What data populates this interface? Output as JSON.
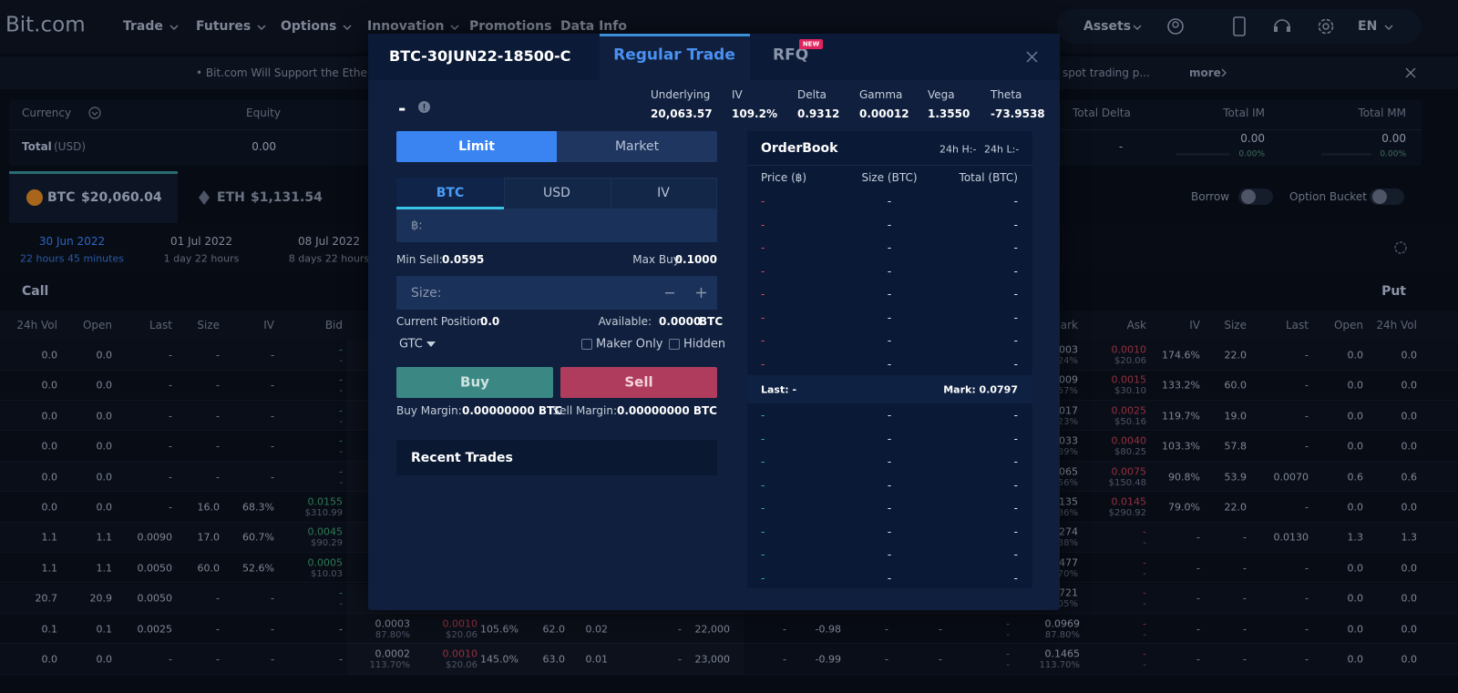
{
  "nav": {
    "logo": "Bit.com",
    "items": [
      "Trade",
      "Futures",
      "Options",
      "Innovation",
      "Promotions",
      "Data Info"
    ],
    "assets": "Assets",
    "language": "EN"
  },
  "banner": {
    "text": "• Bit.com Will Support the Ethereum",
    "text_right": "spot trading p...",
    "more": "more"
  },
  "account": {
    "headers": {
      "currency": "Currency",
      "equity": "Equity",
      "total_delta": "Total Delta",
      "total_im": "Total IM",
      "total_mm": "Total MM"
    },
    "total_label": "Total",
    "total_unit": "(USD)",
    "equity": "0.00",
    "total_delta": "-",
    "total_im": "0.00",
    "total_im_pct": "0.00%",
    "total_mm": "0.00",
    "total_mm_pct": "0.00%"
  },
  "currencies": [
    {
      "symbol": "BTC",
      "price": "$20,060.04"
    },
    {
      "symbol": "ETH",
      "price": "$1,131.54"
    }
  ],
  "toggles": [
    "Borrow",
    "Option Bucket"
  ],
  "expiries": [
    {
      "date": "30 Jun 2022",
      "remaining": "22 hours 45 minutes"
    },
    {
      "date": "01 Jul 2022",
      "remaining": "1 day 22 hours"
    },
    {
      "date": "08 Jul 2022",
      "remaining": "8 days 22 hours"
    }
  ],
  "call": "Call",
  "put": "Put",
  "table": {
    "left_headers": [
      "24h Vol",
      "Open",
      "Last",
      "Size",
      "IV",
      "Bid"
    ],
    "right_headers": [
      "Mark",
      "Ask",
      "IV",
      "Size",
      "Last",
      "Open",
      "24h Vol"
    ],
    "rows": [
      {
        "left": [
          "0.0",
          "0.0",
          "-",
          "-",
          "-",
          [
            "-",
            "-"
          ]
        ],
        "right": [
          [
            "003",
            "24%"
          ],
          [
            "0.0010",
            "$20.06"
          ],
          "174.6%",
          "22.0",
          "-",
          "0.0",
          "0.0"
        ]
      },
      {
        "left": [
          "0.0",
          "0.0",
          "-",
          "-",
          "-",
          [
            "-",
            "-"
          ]
        ],
        "right": [
          [
            "009",
            "57%"
          ],
          [
            "0.0015",
            "$30.10"
          ],
          "133.2%",
          "60.0",
          "-",
          "0.0",
          "0.0"
        ]
      },
      {
        "left": [
          "0.0",
          "0.0",
          "-",
          "-",
          "-",
          [
            "-",
            "-"
          ]
        ],
        "right": [
          [
            "017",
            "23%"
          ],
          [
            "0.0025",
            "$50.16"
          ],
          "119.7%",
          "19.0",
          "-",
          "0.0",
          "0.0"
        ]
      },
      {
        "left": [
          "0.0",
          "0.0",
          "-",
          "-",
          "-",
          [
            "-",
            "-"
          ]
        ],
        "right": [
          [
            "033",
            "89%"
          ],
          [
            "0.0040",
            "$80.25"
          ],
          "103.3%",
          "57.8",
          "-",
          "0.0",
          "0.0"
        ]
      },
      {
        "left": [
          "0.0",
          "0.0",
          "-",
          "-",
          "-",
          [
            "-",
            "-"
          ]
        ],
        "right": [
          [
            "065",
            "56%"
          ],
          [
            "0.0075",
            "$150.48"
          ],
          "90.8%",
          "53.9",
          "0.0070",
          "0.6",
          "0.6"
        ]
      },
      {
        "left": [
          "0.0",
          "0.0",
          "-",
          "16.0",
          "68.3%",
          [
            "0.0155",
            "$310.99"
          ]
        ],
        "right": [
          [
            "135",
            "36%"
          ],
          [
            "0.0145",
            "$290.92"
          ],
          "79.0%",
          "22.0",
          "-",
          "0.0",
          "0.0"
        ]
      },
      {
        "left": [
          "1.1",
          "1.1",
          "0.0090",
          "17.0",
          "60.7%",
          [
            "0.0045",
            "$90.29"
          ]
        ],
        "right": [
          [
            "274",
            "38%"
          ],
          [
            "-",
            "-"
          ],
          "-",
          "-",
          "0.0130",
          "1.3",
          "1.3"
        ]
      },
      {
        "left": [
          "1.1",
          "1.1",
          "0.0050",
          "60.0",
          "52.6%",
          [
            "0.0005",
            "$10.03"
          ]
        ],
        "right": [
          [
            "477",
            "70%"
          ],
          [
            "-",
            "-"
          ],
          "-",
          "-",
          "-",
          "0.0",
          "0.0"
        ]
      },
      {
        "left": [
          "20.7",
          "20.9",
          "0.0050",
          "-",
          "-",
          [
            "-",
            "-"
          ]
        ],
        "right": [
          [
            "721",
            "05%"
          ],
          [
            "-",
            "-"
          ],
          "-",
          "-",
          "-",
          "0.0",
          "0.0"
        ]
      }
    ],
    "full_rows": [
      [
        "0.1",
        "0.1",
        "0.0025",
        "-",
        "-",
        "-",
        [
          "0.0003",
          "87.80%"
        ],
        [
          "0.0010",
          "$20.06"
        ],
        "105.6%",
        "62.0",
        "0.02",
        "-",
        "22,000",
        "-",
        "-0.98",
        "-",
        "-",
        [
          "-",
          "-"
        ],
        [
          "0.0969",
          "87.80%"
        ],
        [
          "-",
          "-"
        ],
        "-",
        "-",
        "-",
        "0.0",
        "0.0"
      ],
      [
        "0.0",
        "0.0",
        "-",
        "-",
        "-",
        "-",
        [
          "0.0002",
          "113.70%"
        ],
        [
          "0.0010",
          "$20.06"
        ],
        "145.0%",
        "63.0",
        "0.01",
        "-",
        "23,000",
        "-",
        "-0.99",
        "-",
        "-",
        [
          "-",
          "-"
        ],
        [
          "0.1465",
          "113.70%"
        ],
        [
          "-",
          "-"
        ],
        "-",
        "-",
        "-",
        "0.0",
        "0.0"
      ]
    ]
  },
  "modal": {
    "instrument": "BTC-30JUN22-18500-C",
    "tabs": [
      "Regular Trade",
      "RFQ"
    ],
    "badge": "NEW",
    "price": "-",
    "stats": [
      {
        "label": "Underlying",
        "value": "20,063.57"
      },
      {
        "label": "IV",
        "value": "109.2%"
      },
      {
        "label": "Delta",
        "value": "0.9312"
      },
      {
        "label": "Gamma",
        "value": "0.00012"
      },
      {
        "label": "Vega",
        "value": "1.3550"
      },
      {
        "label": "Theta",
        "value": "-73.9538"
      }
    ],
    "order_types": [
      "Limit",
      "Market"
    ],
    "units": [
      "BTC",
      "USD",
      "IV"
    ],
    "price_label": "฿:",
    "min_sell_label": "Min Sell:",
    "min_sell": "0.0595",
    "max_buy_label": "Max Buy:",
    "max_buy": "0.1000",
    "size_label": "Size:",
    "position_label": "Current Position:",
    "position": "0.0",
    "available_label": "Available:",
    "available": "0.0000",
    "available_unit": "BTC",
    "time_in_force": "GTC",
    "options": [
      "Maker Only",
      "Hidden"
    ],
    "buy": "Buy",
    "sell": "Sell",
    "buy_margin_label": "Buy Margin:",
    "buy_margin": "0.00000000 BTC",
    "sell_margin_label": "Sell Margin:",
    "sell_margin": "0.00000000 BTC",
    "recent_trades": "Recent Trades"
  },
  "orderbook": {
    "title": "OrderBook",
    "high": "24h H:-",
    "low": "24h L:-",
    "headers": [
      "Price (฿)",
      "Size (BTC)",
      "Total (BTC)"
    ],
    "asks": [
      [
        "-",
        "-",
        "-"
      ],
      [
        "-",
        "-",
        "-"
      ],
      [
        "-",
        "-",
        "-"
      ],
      [
        "-",
        "-",
        "-"
      ],
      [
        "-",
        "-",
        "-"
      ],
      [
        "-",
        "-",
        "-"
      ],
      [
        "-",
        "-",
        "-"
      ],
      [
        "-",
        "-",
        "-"
      ]
    ],
    "last": "Last: -",
    "mark": "Mark: 0.0797",
    "bids": [
      [
        "-",
        "-",
        "-"
      ],
      [
        "-",
        "-",
        "-"
      ],
      [
        "-",
        "-",
        "-"
      ],
      [
        "-",
        "-",
        "-"
      ],
      [
        "-",
        "-",
        "-"
      ],
      [
        "-",
        "-",
        "-"
      ],
      [
        "-",
        "-",
        "-"
      ],
      [
        "-",
        "-",
        "-"
      ]
    ]
  }
}
